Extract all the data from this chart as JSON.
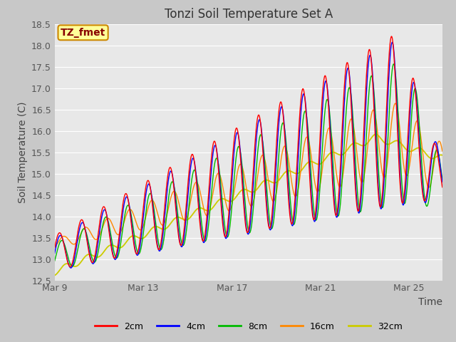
{
  "title": "Tonzi Soil Temperature Set A",
  "ylabel": "Soil Temperature (C)",
  "xlabel": "Time",
  "annotation": "TZ_fmet",
  "ylim": [
    12.5,
    18.5
  ],
  "yticks": [
    12.5,
    13.0,
    13.5,
    14.0,
    14.5,
    15.0,
    15.5,
    16.0,
    16.5,
    17.0,
    17.5,
    18.0,
    18.5
  ],
  "x_tick_labels": [
    "Mar 9",
    "Mar 13",
    "Mar 17",
    "Mar 21",
    "Mar 25"
  ],
  "x_tick_positions": [
    0,
    4,
    8,
    12,
    16
  ],
  "xlim": [
    0,
    17.5
  ],
  "series_colors": {
    "2cm": "#ff0000",
    "4cm": "#0000ff",
    "8cm": "#00bb00",
    "16cm": "#ff8800",
    "32cm": "#cccc00"
  },
  "series_labels": [
    "2cm",
    "4cm",
    "8cm",
    "16cm",
    "32cm"
  ],
  "fig_facecolor": "#c8c8c8",
  "plot_bg_color": "#e8e8e8",
  "title_fontsize": 12,
  "axis_fontsize": 10,
  "tick_fontsize": 9,
  "legend_fontsize": 9,
  "annotation_bg": "#ffff99",
  "annotation_border": "#cc8800",
  "grid_color": "#ffffff",
  "line_width": 1.0
}
